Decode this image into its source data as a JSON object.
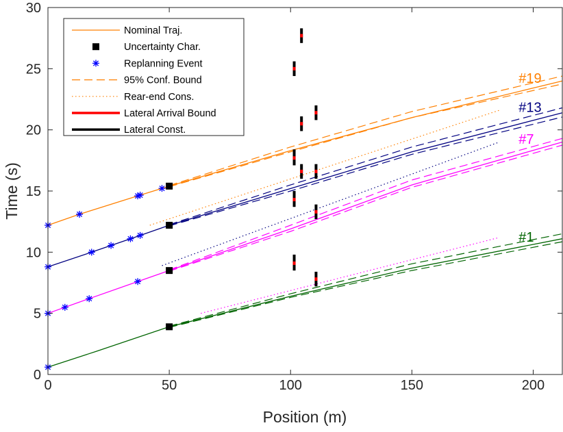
{
  "chart_data": {
    "type": "line",
    "xlabel": "Position (m)",
    "ylabel": "Time (s)",
    "xlim": [
      0,
      212
    ],
    "ylim": [
      0,
      30
    ],
    "xticks": [
      0,
      50,
      100,
      150,
      200
    ],
    "yticks": [
      0,
      5,
      10,
      15,
      20,
      25,
      30
    ],
    "legend": {
      "placement": "top-left",
      "entries": [
        {
          "label": "Nominal Traj.",
          "style": "solid",
          "color": "#ff8000"
        },
        {
          "label": "Uncertainty Char.",
          "style": "square",
          "color": "#000000"
        },
        {
          "label": "Replanning Event",
          "style": "asterisk",
          "color": "#0000ff"
        },
        {
          "label": "95% Conf. Bound",
          "style": "dashed",
          "color": "#ff8000"
        },
        {
          "label": "Rear-end Cons.",
          "style": "dotted",
          "color": "#ff8000"
        },
        {
          "label": "Lateral Arrival Bound",
          "style": "thick",
          "color": "#ff0000"
        },
        {
          "label": "Lateral Const.",
          "style": "thick",
          "color": "#000000"
        }
      ]
    },
    "vehicles": [
      {
        "label": "#1",
        "color": "#006400",
        "label_x": 194,
        "label_y": 11.3,
        "start_x": 0,
        "start_t": 0.6,
        "char_x": 50,
        "char_t": 3.9,
        "nominal": [
          [
            0,
            0.6
          ],
          [
            20,
            1.9
          ],
          [
            50,
            3.9
          ],
          [
            100,
            6.4
          ],
          [
            150,
            8.7
          ],
          [
            212,
            11.1
          ]
        ],
        "upper": [
          [
            50,
            3.95
          ],
          [
            100,
            6.6
          ],
          [
            150,
            9.05
          ],
          [
            212,
            11.5
          ]
        ],
        "lower": [
          [
            50,
            3.85
          ],
          [
            100,
            6.3
          ],
          [
            150,
            8.5
          ],
          [
            212,
            10.85
          ]
        ],
        "rear_end": [],
        "replan_x": [
          0
        ]
      },
      {
        "label": "#7",
        "color": "#ff00ff",
        "label_x": 194,
        "label_y": 19.3,
        "start_x": 0,
        "start_t": 5.0,
        "char_x": 50,
        "char_t": 8.5,
        "nominal": [
          [
            0,
            5.0
          ],
          [
            17,
            6.2
          ],
          [
            37,
            7.6
          ],
          [
            50,
            8.5
          ],
          [
            100,
            11.9
          ],
          [
            150,
            15.5
          ],
          [
            212,
            19.0
          ]
        ],
        "upper": [
          [
            50,
            8.55
          ],
          [
            100,
            12.2
          ],
          [
            150,
            15.9
          ],
          [
            212,
            19.3
          ]
        ],
        "lower": [
          [
            50,
            8.45
          ],
          [
            100,
            11.7
          ],
          [
            150,
            15.3
          ],
          [
            212,
            18.75
          ]
        ],
        "rear_end": [
          [
            63,
            5.0
          ],
          [
            186,
            11.2
          ]
        ],
        "replan_x": [
          0,
          7,
          17,
          37
        ]
      },
      {
        "label": "#13",
        "color": "#000080",
        "label_x": 194,
        "label_y": 21.9,
        "start_x": 0,
        "start_t": 8.8,
        "char_x": 50,
        "char_t": 12.2,
        "nominal": [
          [
            0,
            8.8
          ],
          [
            18,
            10.0
          ],
          [
            37,
            11.3
          ],
          [
            50,
            12.2
          ],
          [
            100,
            15.2
          ],
          [
            150,
            18.2
          ],
          [
            212,
            21.4
          ]
        ],
        "upper": [
          [
            50,
            12.25
          ],
          [
            100,
            15.5
          ],
          [
            150,
            18.6
          ],
          [
            212,
            21.8
          ]
        ],
        "lower": [
          [
            50,
            12.15
          ],
          [
            100,
            15.0
          ],
          [
            150,
            18.0
          ],
          [
            212,
            21.05
          ]
        ],
        "rear_end": [
          [
            47,
            8.9
          ],
          [
            186,
            19.0
          ]
        ],
        "replan_x": [
          0,
          18,
          26,
          34,
          38
        ]
      },
      {
        "label": "#19",
        "color": "#ff8000",
        "label_x": 194,
        "label_y": 24.3,
        "start_x": 0,
        "start_t": 12.2,
        "char_x": 50,
        "char_t": 15.4,
        "nominal": [
          [
            0,
            12.2
          ],
          [
            13,
            13.1
          ],
          [
            37,
            14.6
          ],
          [
            50,
            15.4
          ],
          [
            100,
            18.3
          ],
          [
            150,
            21.0
          ],
          [
            212,
            24.0
          ]
        ],
        "upper": [
          [
            50,
            15.45
          ],
          [
            100,
            18.6
          ],
          [
            150,
            21.5
          ],
          [
            212,
            24.4
          ]
        ],
        "lower": [
          [
            50,
            15.35
          ],
          [
            100,
            18.2
          ],
          [
            150,
            21.0
          ],
          [
            212,
            23.75
          ]
        ],
        "rear_end": [
          [
            42,
            12.2
          ],
          [
            186,
            21.6
          ]
        ],
        "replan_x": [
          0,
          13,
          37,
          38,
          47
        ]
      }
    ],
    "lateral_constraints": [
      {
        "x": 101.5,
        "t_min": 8.5,
        "t_max": 9.8,
        "arrival": 9.1
      },
      {
        "x": 101.5,
        "t_min": 13.7,
        "t_max": 15.0,
        "arrival": 14.3
      },
      {
        "x": 101.5,
        "t_min": 17.1,
        "t_max": 18.4,
        "arrival": 17.7
      },
      {
        "x": 101.5,
        "t_min": 24.4,
        "t_max": 25.6,
        "arrival": 25.0
      },
      {
        "x": 104.5,
        "t_min": 16.0,
        "t_max": 17.2,
        "arrival": 16.6
      },
      {
        "x": 104.5,
        "t_min": 19.9,
        "t_max": 21.1,
        "arrival": 20.5
      },
      {
        "x": 104.5,
        "t_min": 27.1,
        "t_max": 28.3,
        "arrival": 27.7
      },
      {
        "x": 110.5,
        "t_min": 7.2,
        "t_max": 8.4,
        "arrival": 7.8
      },
      {
        "x": 110.5,
        "t_min": 12.7,
        "t_max": 13.9,
        "arrival": 13.3
      },
      {
        "x": 110.5,
        "t_min": 16.0,
        "t_max": 17.2,
        "arrival": 16.6
      },
      {
        "x": 110.5,
        "t_min": 20.8,
        "t_max": 22.0,
        "arrival": 21.4
      }
    ]
  }
}
